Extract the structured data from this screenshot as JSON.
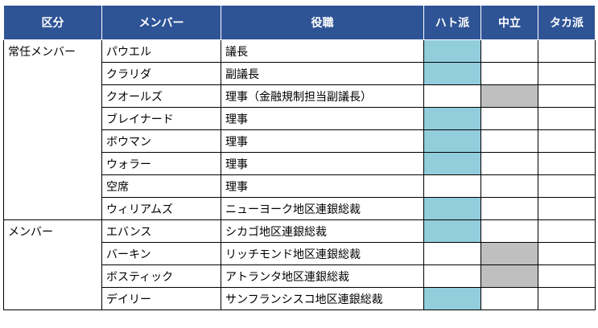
{
  "headers": {
    "category": "区分",
    "member": "メンバー",
    "role": "役職",
    "hawk": "ハト派",
    "neutral": "中立",
    "dove": "タカ派"
  },
  "groups": [
    {
      "label": "常任メンバー",
      "rows": 8
    },
    {
      "label": "メンバー",
      "rows": 4
    }
  ],
  "rows": [
    {
      "member": "パウエル",
      "role": "議長",
      "stance": "hawk"
    },
    {
      "member": "クラリダ",
      "role": "副議長",
      "stance": "hawk"
    },
    {
      "member": "クオールズ",
      "role": "理事（金融規制担当副議長）",
      "stance": "neutral"
    },
    {
      "member": "ブレイナード",
      "role": "理事",
      "stance": "hawk"
    },
    {
      "member": "ボウマン",
      "role": "理事",
      "stance": "hawk"
    },
    {
      "member": "ウォラー",
      "role": "理事",
      "stance": "hawk"
    },
    {
      "member": "空席",
      "role": "理事",
      "stance": ""
    },
    {
      "member": "ウィリアムズ",
      "role": "ニューヨーク地区連銀総裁",
      "stance": "hawk"
    },
    {
      "member": "エバンス",
      "role": "シカゴ地区連銀総裁",
      "stance": "hawk"
    },
    {
      "member": "バーキン",
      "role": "リッチモンド地区連銀総裁",
      "stance": "neutral"
    },
    {
      "member": "ボスティック",
      "role": "アトランタ地区連銀総裁",
      "stance": "neutral"
    },
    {
      "member": "デイリー",
      "role": "サンフランシスコ地区連銀総裁",
      "stance": "hawk"
    }
  ],
  "colors": {
    "header_bg": "#2f5496",
    "hawk_fill": "#92cddc",
    "neutral_fill": "#bfbfbf"
  }
}
